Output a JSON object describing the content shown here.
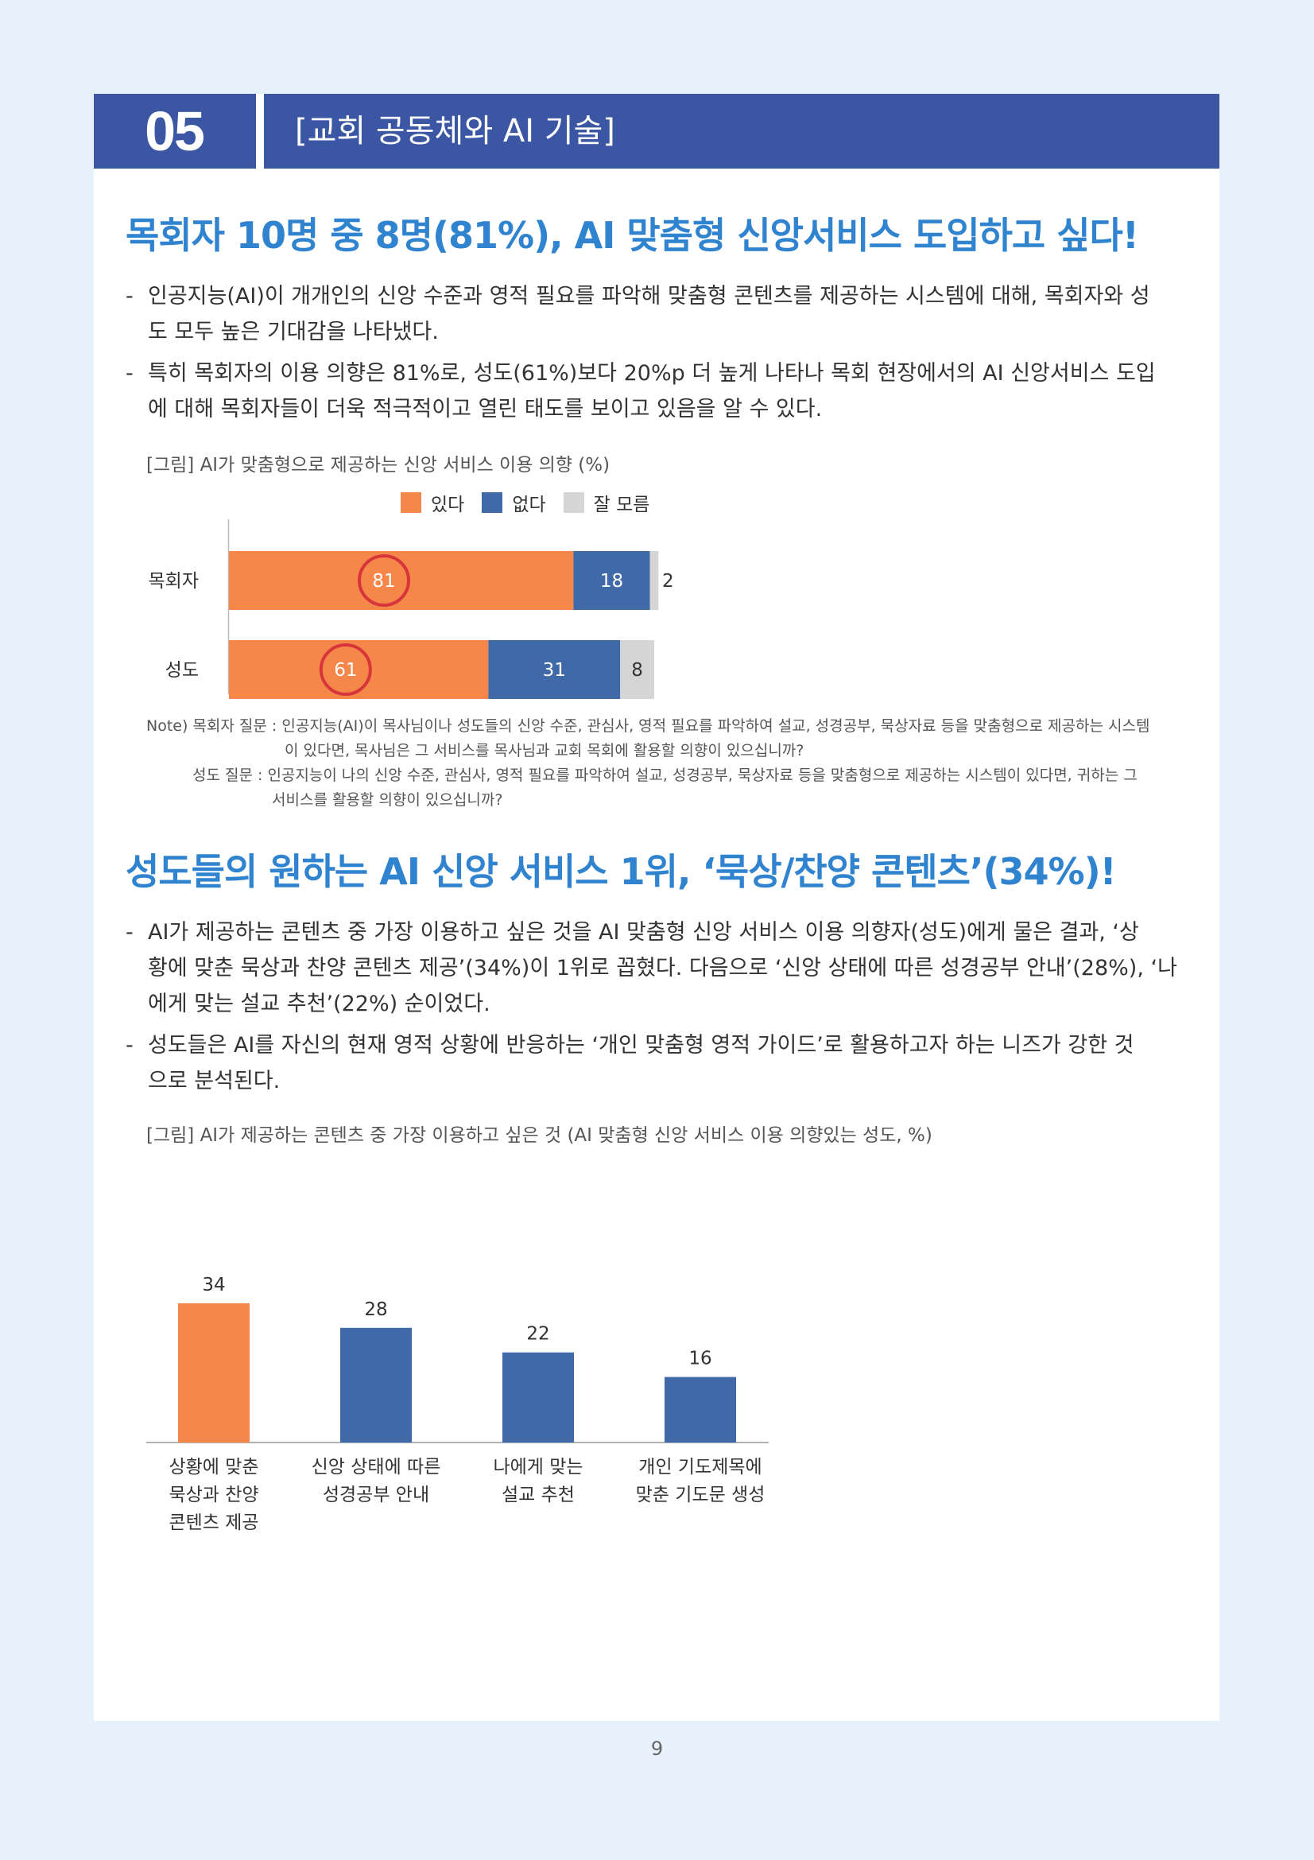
{
  "header": {
    "number": "05",
    "title": "[교회 공동체와 AI 기술]"
  },
  "section1": {
    "heading": "목회자 10명 중 8명(81%), AI 맞춤형 신앙서비스 도입하고 싶다!",
    "bullets": [
      {
        "dash": "-",
        "line1": "인공지능(AI)이 개개인의 신앙 수준과 영적 필요를 파악해 맞춤형 콘텐츠를 제공하는 시스템에 대해, 목회자와 성",
        "line2": "도 모두 높은 기대감을 나타냈다."
      },
      {
        "dash": "-",
        "line1": "특히 목회자의 이용 의향은 81%로, 성도(61%)보다 20%p 더 높게 나타나 목회 현장에서의 AI 신앙서비스 도입",
        "line2": "에 대해 목회자들이 더욱 적극적이고 열린 태도를 보이고 있음을 알 수 있다."
      }
    ],
    "caption": "[그림] AI가 맞춤형으로 제공하는 신앙 서비스 이용 의향 (%)",
    "notes": [
      "Note) 목회자 질문 : 인공지능(AI)이 목사님이나 성도들의 신앙 수준, 관심사, 영적 필요를 파악하여 설교, 성경공부, 묵상자료 등을 맞춤형으로 제공하는 시스템",
      "이 있다면, 목사님은 그 서비스를 목사님과 교회 목회에 활용할 의향이 있으십니까?",
      "성도 질문 : 인공지능이 나의 신앙 수준, 관심사, 영적 필요를 파악하여 설교, 성경공부, 묵상자료 등을 맞춤형으로 제공하는 시스템이 있다면, 귀하는 그",
      "서비스를 활용할 의향이 있으십니까?"
    ]
  },
  "section2": {
    "heading": "성도들의 원하는 AI 신앙 서비스 1위, ‘묵상/찬양 콘텐츠’(34%)!",
    "bullets": [
      {
        "dash": "-",
        "line1": "AI가 제공하는 콘텐츠 중 가장 이용하고 싶은 것을 AI 맞춤형 신앙 서비스 이용 의향자(성도)에게 물은 결과, ‘상",
        "line2": "황에 맞춘 묵상과 찬양 콘텐츠 제공’(34%)이 1위로 꼽혔다. 다음으로 ‘신앙 상태에 따른 성경공부 안내’(28%), ‘나",
        "line3": "에게 맞는 설교 추천’(22%) 순이었다."
      },
      {
        "dash": "-",
        "line1": "성도들은 AI를 자신의 현재 영적 상황에 반응하는 ‘개인 맞춤형 영적 가이드’로 활용하고자 하는 니즈가 강한 것",
        "line2": "으로 분석된다."
      }
    ],
    "caption": "[그림] AI가 제공하는 콘텐츠 중 가장 이용하고 싶은 것 (AI 맞춤형 신앙 서비스 이용 의향있는 성도, %)"
  },
  "chart_data": [
    {
      "type": "bar",
      "orientation": "horizontal-stacked",
      "categories": [
        "목회자",
        "성도"
      ],
      "series": [
        {
          "name": "있다",
          "values": [
            81,
            61
          ],
          "color": "#f5874a"
        },
        {
          "name": "없다",
          "values": [
            18,
            31
          ],
          "color": "#4069a8"
        },
        {
          "name": "잘 모름",
          "values": [
            2,
            8
          ],
          "color": "#d5d5d5"
        }
      ],
      "highlight": "있다",
      "legend": "top"
    },
    {
      "type": "bar",
      "categories": [
        "상황에 맞춘\n묵상과 찬양\n콘텐츠 제공",
        "신앙 상태에 따른\n성경공부 안내",
        "나에게 맞는\n설교 추천",
        "개인 기도제목에\n맞춘 기도문 생성"
      ],
      "values": [
        34,
        28,
        22,
        16
      ],
      "colors": [
        "#f5874a",
        "#4069a8",
        "#4069a8",
        "#4069a8"
      ],
      "ylim": [
        0,
        34
      ]
    }
  ],
  "page_number": "9"
}
